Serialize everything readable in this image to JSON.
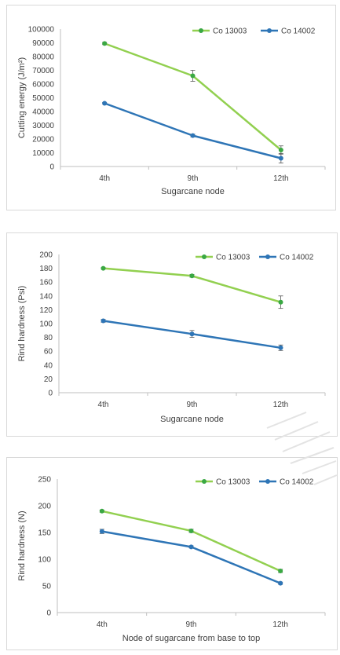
{
  "colors": {
    "green": "#92d050",
    "blue": "#2e75b6",
    "green_marker": "#3aa843",
    "axis": "#bfbfbf",
    "text": "#404040"
  },
  "chart_data": [
    {
      "type": "line",
      "categories": [
        "4th",
        "9th",
        "12th"
      ],
      "xlabel": "Sugarcane node",
      "ylabel": "Cutting energy (J/m²)",
      "ylim": [
        0,
        100000
      ],
      "yticks": [
        0,
        10000,
        20000,
        30000,
        40000,
        50000,
        60000,
        70000,
        80000,
        90000,
        100000
      ],
      "grid": false,
      "legend": "top-right",
      "series": [
        {
          "name": "Co 13003",
          "color": "#92d050",
          "values": [
            89500,
            66000,
            12000
          ],
          "errors": [
            800,
            4000,
            3000
          ]
        },
        {
          "name": "Co 14002",
          "color": "#2e75b6",
          "values": [
            46000,
            22500,
            6000
          ],
          "errors": [
            500,
            1000,
            3500
          ]
        }
      ]
    },
    {
      "type": "line",
      "categories": [
        "4th",
        "9th",
        "12th"
      ],
      "xlabel": "Sugarcane node",
      "ylabel": "Rind hardness (Psi)",
      "ylim": [
        0,
        200
      ],
      "yticks": [
        0,
        20,
        40,
        60,
        80,
        100,
        120,
        140,
        160,
        180,
        200
      ],
      "grid": false,
      "legend": "top-right",
      "series": [
        {
          "name": "Co 13003",
          "color": "#92d050",
          "values": [
            180,
            169,
            131
          ],
          "errors": [
            1,
            2,
            9
          ]
        },
        {
          "name": "Co 14002",
          "color": "#2e75b6",
          "values": [
            104,
            85,
            65
          ],
          "errors": [
            2,
            5,
            4
          ]
        }
      ]
    },
    {
      "type": "line",
      "categories": [
        "4th",
        "9th",
        "12th"
      ],
      "xlabel": "Node of sugarcane from base to top",
      "ylabel": "Rind hardness (N)",
      "ylim": [
        0,
        250
      ],
      "yticks": [
        0,
        50,
        100,
        150,
        200,
        250
      ],
      "grid": false,
      "legend": "top-right",
      "series": [
        {
          "name": "Co 13003",
          "color": "#92d050",
          "values": [
            190,
            153,
            78
          ],
          "errors": [
            2,
            3,
            3
          ]
        },
        {
          "name": "Co 14002",
          "color": "#2e75b6",
          "values": [
            152,
            123,
            55
          ],
          "errors": [
            4,
            2,
            2
          ]
        }
      ]
    }
  ]
}
